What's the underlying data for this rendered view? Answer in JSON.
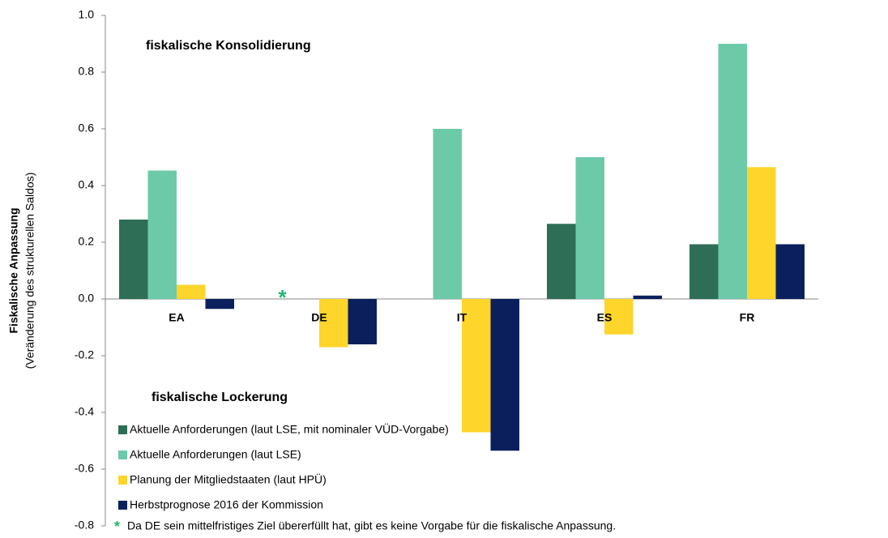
{
  "chart_data": {
    "type": "bar",
    "y_label": "Fiskalische Anpassung",
    "y_sublabel": "(Veränderung des strukturellen Saldos)",
    "annotations": [
      "fiskalische Konsolidierung",
      "fiskalische Lockerung"
    ],
    "footnote_marker": "*",
    "footnote": "Da DE sein mittelfristiges Ziel übererfüllt hat, gibt es keine Vorgabe für die fiskalische Anpassung.",
    "categories": [
      "EA",
      "DE",
      "IT",
      "ES",
      "FR"
    ],
    "series": [
      {
        "name": "Aktuelle Anforderungen (laut LSE, mit nominaler VÜD-Vorgabe)",
        "color": "#2e6e56",
        "values": [
          0.28,
          null,
          null,
          0.265,
          0.193
        ]
      },
      {
        "name": "Aktuelle Anforderungen (laut LSE)",
        "color": "#6dcaa9",
        "values": [
          0.453,
          null,
          0.6,
          0.5,
          0.9
        ]
      },
      {
        "name": "Planung der Mitgliedstaaten (laut HPÜ)",
        "color": "#fdd52b",
        "values": [
          0.05,
          -0.17,
          -0.47,
          -0.125,
          0.465
        ]
      },
      {
        "name": "Herbstprognose 2016 der Kommission",
        "color": "#0b1f5c",
        "values": [
          -0.035,
          -0.16,
          -0.535,
          0.012,
          0.193
        ]
      }
    ],
    "ylim": [
      -0.8,
      1.0
    ],
    "yticks": [
      -0.8,
      -0.6,
      -0.4,
      -0.2,
      {
        "value": 0,
        "label": "0.0"
      },
      0.2,
      0.4,
      0.6,
      0.8,
      {
        "value": 1,
        "label": "1.0"
      }
    ],
    "marker_color": "#22b573"
  }
}
